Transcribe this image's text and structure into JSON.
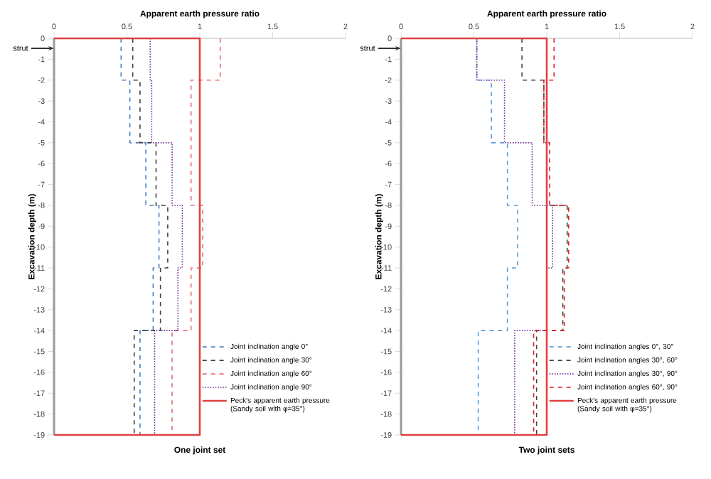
{
  "chart_data": [
    {
      "type": "line",
      "xlabel": "Apparent earth pressure ratio",
      "ylabel": "Excavation depth (m)",
      "xlim": [
        0,
        2
      ],
      "ylim": [
        -19,
        0
      ],
      "xticks": [
        0,
        0.5,
        1,
        1.5,
        2
      ],
      "yticks": [
        0,
        -1,
        -2,
        -3,
        -4,
        -5,
        -6,
        -7,
        -8,
        -9,
        -10,
        -11,
        -12,
        -13,
        -14,
        -15,
        -16,
        -17,
        -18,
        -19
      ],
      "legend": "bottom right",
      "annotations": [
        "One joint set",
        "strut"
      ],
      "series": [
        {
          "name": "Joint inclination angle 0°",
          "color": "#4a7ebb",
          "line_style": "dashed",
          "x": [
            0.46,
            0.46,
            0.52,
            0.52,
            0.63,
            0.63,
            0.72,
            0.72,
            0.68,
            0.68,
            0.59,
            0.59
          ],
          "values": [
            0,
            -2,
            -2,
            -5,
            -5,
            -8,
            -8,
            -11,
            -11,
            -14,
            -14,
            -19
          ]
        },
        {
          "name": "Joint inclination angle 30°",
          "color": "#404040",
          "line_style": "dashed",
          "x": [
            0.54,
            0.54,
            0.59,
            0.59,
            0.7,
            0.7,
            0.78,
            0.78,
            0.73,
            0.73,
            0.55,
            0.55
          ],
          "values": [
            0,
            -2,
            -2,
            -5,
            -5,
            -8,
            -8,
            -11,
            -11,
            -14,
            -14,
            -19
          ]
        },
        {
          "name": "Joint inclination angle 60°",
          "color": "#e66c6c",
          "line_style": "dashed",
          "x": [
            1.14,
            1.14,
            0.94,
            0.94,
            0.94,
            0.94,
            1.02,
            1.02,
            0.94,
            0.94,
            0.81,
            0.81
          ],
          "values": [
            0,
            -2,
            -2,
            -5,
            -5,
            -8,
            -8,
            -11,
            -11,
            -14,
            -14,
            -19
          ]
        },
        {
          "name": "Joint inclination angle 90°",
          "color": "#7030a0",
          "line_style": "dotted",
          "x": [
            0.66,
            0.66,
            0.67,
            0.67,
            0.81,
            0.81,
            0.88,
            0.88,
            0.85,
            0.85,
            0.69,
            0.69
          ],
          "values": [
            0,
            -2,
            -2,
            -5,
            -5,
            -8,
            -8,
            -11,
            -11,
            -14,
            -14,
            -19
          ]
        },
        {
          "name": "Peck's apparent earth pressure (Sandy soil with φ=35°)",
          "color": "#e04040",
          "line_style": "solid",
          "x": [
            0,
            1,
            1,
            0
          ],
          "values": [
            0,
            0,
            -19,
            -19
          ]
        }
      ]
    },
    {
      "type": "line",
      "xlabel": "Apparent earth pressure ratio",
      "ylabel": "Excavation depth (m)",
      "xlim": [
        0,
        2
      ],
      "ylim": [
        -19,
        0
      ],
      "xticks": [
        0,
        0.5,
        1,
        1.5,
        2
      ],
      "yticks": [
        0,
        -1,
        -2,
        -3,
        -4,
        -5,
        -6,
        -7,
        -8,
        -9,
        -10,
        -11,
        -12,
        -13,
        -14,
        -15,
        -16,
        -17,
        -18,
        -19
      ],
      "legend": "bottom right",
      "annotations": [
        "Two joint sets",
        "strut"
      ],
      "series": [
        {
          "name": "Joint inclination angles 0°, 30°",
          "color": "#5b9bd5",
          "line_style": "dashed",
          "x": [
            0.52,
            0.52,
            0.62,
            0.62,
            0.73,
            0.73,
            0.8,
            0.8,
            0.73,
            0.73,
            0.53,
            0.53
          ],
          "values": [
            0,
            -2,
            -2,
            -5,
            -5,
            -8,
            -8,
            -11,
            -11,
            -14,
            -14,
            -19
          ]
        },
        {
          "name": "Joint inclination angles 30°, 60°",
          "color": "#404040",
          "line_style": "dashed",
          "x": [
            0.83,
            0.83,
            0.98,
            0.98,
            1.0,
            1.0,
            1.14,
            1.14,
            1.11,
            1.11,
            0.93,
            0.93
          ],
          "values": [
            0,
            -2,
            -2,
            -5,
            -5,
            -8,
            -8,
            -11,
            -11,
            -14,
            -14,
            -19
          ]
        },
        {
          "name": "Joint inclination angles 30°, 90°",
          "color": "#7030a0",
          "line_style": "dotted",
          "x": [
            0.52,
            0.52,
            0.71,
            0.71,
            0.9,
            0.9,
            1.04,
            1.04,
            1.0,
            1.0,
            0.78,
            0.78
          ],
          "values": [
            0,
            -2,
            -2,
            -5,
            -5,
            -8,
            -8,
            -11,
            -11,
            -14,
            -14,
            -19
          ]
        },
        {
          "name": "Joint inclination angles 60°, 90°",
          "color": "#e02020",
          "line_style": "dashed",
          "x": [
            1.05,
            1.05,
            0.98,
            0.98,
            1.02,
            1.02,
            1.15,
            1.15,
            1.12,
            1.12,
            0.91,
            0.91
          ],
          "values": [
            0,
            -2,
            -2,
            -5,
            -5,
            -8,
            -8,
            -11,
            -11,
            -14,
            -14,
            -19
          ]
        },
        {
          "name": "Peck's apparent earth pressure (Sandy soil with φ=35°)",
          "color": "#e04040",
          "line_style": "solid",
          "x": [
            0,
            1,
            1,
            0
          ],
          "values": [
            0,
            0,
            -19,
            -19
          ]
        }
      ]
    }
  ]
}
